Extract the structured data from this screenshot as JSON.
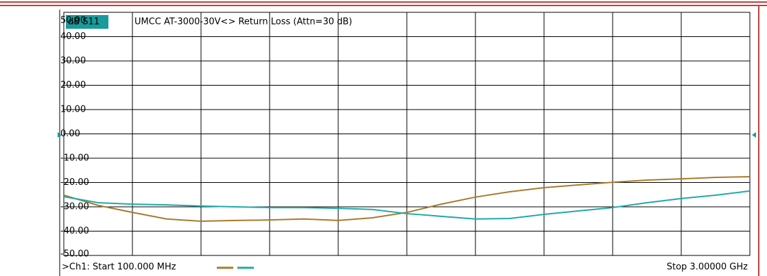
{
  "chart_data": {
    "type": "line",
    "trace_label": "dB S11",
    "title": "UMCC AT-3000-30V<> Return Loss (Attn=30 dB)",
    "start_label": ">Ch1: Start 100.000 MHz",
    "stop_label": "Stop 3.00000 GHz",
    "x": [
      100,
      245,
      390,
      535,
      680,
      825,
      970,
      1115,
      1260,
      1405,
      1550,
      1695,
      1840,
      1985,
      2130,
      2275,
      2420,
      2565,
      2710,
      2855,
      3000
    ],
    "xlim": [
      100,
      3000
    ],
    "ylim": [
      -50,
      50
    ],
    "yticks": [
      {
        "value": 50,
        "label": "50.00"
      },
      {
        "value": 40,
        "label": "40.00"
      },
      {
        "value": 30,
        "label": "30.00"
      },
      {
        "value": 20,
        "label": "20.00"
      },
      {
        "value": 10,
        "label": "10.00"
      },
      {
        "value": 0,
        "label": "0.00"
      },
      {
        "value": -10,
        "label": "-10.00"
      },
      {
        "value": -20,
        "label": "-20.00"
      },
      {
        "value": -30,
        "label": "-30.00"
      },
      {
        "value": -40,
        "label": "-40.00"
      },
      {
        "value": -50,
        "label": "-50.00"
      }
    ],
    "grid": true,
    "series": [
      {
        "color": "#a87a2a",
        "values": [
          -25.2,
          -29.4,
          -32.3,
          -35.0,
          -35.9,
          -35.6,
          -35.4,
          -35.0,
          -35.6,
          -34.5,
          -32.3,
          -28.9,
          -26.0,
          -23.8,
          -22.1,
          -21.0,
          -19.9,
          -19.0,
          -18.5,
          -17.9,
          -17.6
        ]
      },
      {
        "color": "#20a8a8",
        "values": [
          -25.8,
          -28.3,
          -28.9,
          -29.2,
          -29.7,
          -30.0,
          -30.3,
          -30.3,
          -30.6,
          -31.1,
          -32.8,
          -33.9,
          -35.0,
          -34.8,
          -33.1,
          -31.7,
          -30.3,
          -28.3,
          -26.6,
          -25.2,
          -23.5
        ]
      }
    ]
  }
}
